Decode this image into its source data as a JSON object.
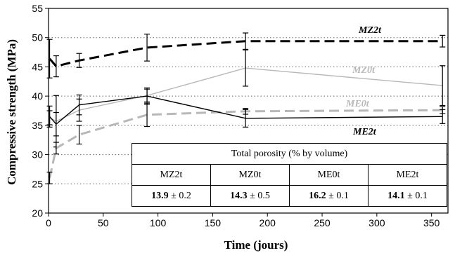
{
  "chart_data": {
    "type": "line",
    "xlabel": "Time (jours)",
    "ylabel": "Compressive strength (MPa)",
    "xlim": [
      0,
      365
    ],
    "ylim": [
      20,
      55
    ],
    "xticks": [
      0,
      50,
      100,
      150,
      200,
      250,
      300,
      350
    ],
    "yticks": [
      20,
      25,
      30,
      35,
      40,
      45,
      50,
      55
    ],
    "grid": "horizontal-dotted",
    "series": [
      {
        "name": "MZ2t",
        "color": "#000000",
        "style": "dashed-thick",
        "x": [
          1,
          7,
          28,
          90,
          180,
          360
        ],
        "y": [
          46.4,
          45.1,
          46.1,
          48.3,
          49.4,
          49.4
        ],
        "err": [
          3.3,
          1.8,
          1.2,
          2.3,
          1.4,
          1.0
        ]
      },
      {
        "name": "MZ0t",
        "color": "#b8b8b8",
        "style": "solid-thin",
        "x": [
          1,
          7,
          28,
          90,
          180,
          360
        ],
        "y": [
          36.3,
          35.7,
          37.6,
          40.1,
          44.8,
          41.8
        ],
        "err": [
          1.2,
          4.4,
          1.9,
          1.1,
          3.1,
          3.4
        ]
      },
      {
        "name": "ME0t",
        "color": "#b8b8b8",
        "style": "dashed-thick",
        "x": [
          1,
          7,
          28,
          90,
          180,
          360
        ],
        "y": [
          26.0,
          31.1,
          33.4,
          36.8,
          37.4,
          37.6
        ],
        "err": [
          1.0,
          1.0,
          1.6,
          2.0,
          0.5,
          0.6
        ]
      },
      {
        "name": "ME2t",
        "color": "#000000",
        "style": "solid-thin",
        "x": [
          1,
          7,
          28,
          90,
          180,
          360
        ],
        "y": [
          36.5,
          35.2,
          38.5,
          40.0,
          36.2,
          36.5
        ],
        "err": [
          1.8,
          2.0,
          1.7,
          1.4,
          1.5,
          1.2
        ]
      }
    ]
  },
  "table": {
    "title": "Total porosity (% by volume)",
    "columns": [
      "MZ2t",
      "MZ0t",
      "ME0t",
      "ME2t"
    ],
    "values": [
      {
        "main": "13.9",
        "err": "± 0.2"
      },
      {
        "main": "14.3",
        "err": "± 0.5"
      },
      {
        "main": "16.2",
        "err": "± 0.1"
      },
      {
        "main": "14.1",
        "err": "± 0.1"
      }
    ]
  }
}
